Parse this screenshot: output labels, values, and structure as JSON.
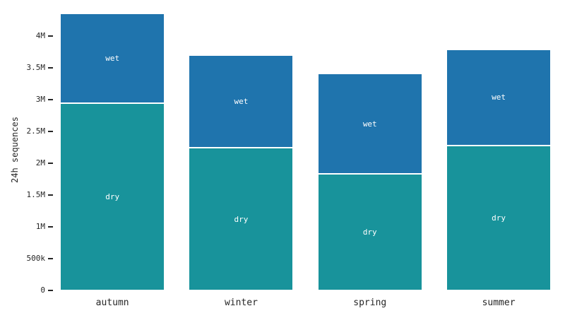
{
  "chart_data": {
    "type": "bar",
    "stacked": true,
    "title": "",
    "xlabel": "",
    "ylabel": "24h sequences",
    "categories": [
      "autumn",
      "winter",
      "spring",
      "summer"
    ],
    "series": [
      {
        "name": "dry",
        "color": "#18939b",
        "values": [
          2930000,
          2230000,
          1820000,
          2270000
        ]
      },
      {
        "name": "wet",
        "color": "#1f74ad",
        "values": [
          1420000,
          1460000,
          1580000,
          1510000
        ]
      }
    ],
    "totals": [
      4350000,
      3690000,
      3400000,
      3780000
    ],
    "ytick_values": [
      0,
      500000,
      1000000,
      1500000,
      2000000,
      2500000,
      3000000,
      3500000,
      4000000
    ],
    "ytick_labels": [
      "0",
      "500k",
      "1M",
      "1.5M",
      "2M",
      "2.5M",
      "3M",
      "3.5M",
      "4M"
    ],
    "ylim": [
      0,
      4550000
    ],
    "grid": false,
    "legend": "none",
    "bar_text_labels": "series name centered inside each stacked segment",
    "segment_separator_color": "#ffffff",
    "background_color": "#ffffff",
    "text_color": "#262626"
  }
}
